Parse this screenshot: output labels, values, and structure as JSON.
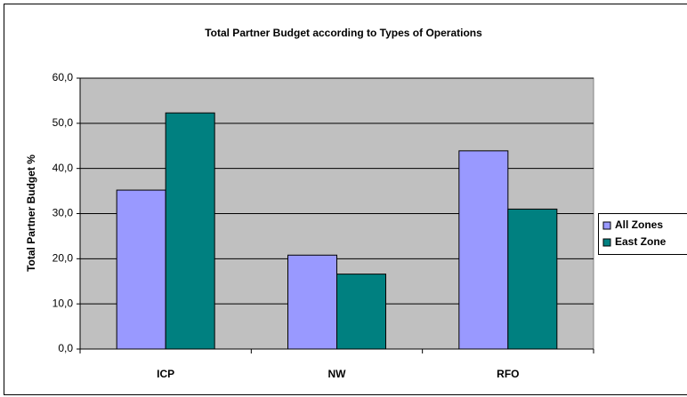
{
  "chart_data": {
    "type": "bar",
    "title": "Total Partner Budget according to Types of Operations",
    "y_label": "Total Partner Budget %",
    "categories": [
      "ICP",
      "NW",
      "RFO"
    ],
    "series": [
      {
        "name": "All Zones",
        "color": "#9999ff",
        "values": [
          35.2,
          20.8,
          43.9
        ]
      },
      {
        "name": "East Zone",
        "color": "#008080",
        "values": [
          52.3,
          16.6,
          31.0
        ]
      }
    ],
    "ylim": [
      0,
      60
    ],
    "yticks": [
      {
        "value": 0,
        "label": "0,0"
      },
      {
        "value": 10,
        "label": "10,0"
      },
      {
        "value": 20,
        "label": "20,0"
      },
      {
        "value": 30,
        "label": "30,0"
      },
      {
        "value": 40,
        "label": "40,0"
      },
      {
        "value": 50,
        "label": "50,0"
      },
      {
        "value": 60,
        "label": "60,0"
      }
    ],
    "grid": true,
    "legend": "right"
  }
}
